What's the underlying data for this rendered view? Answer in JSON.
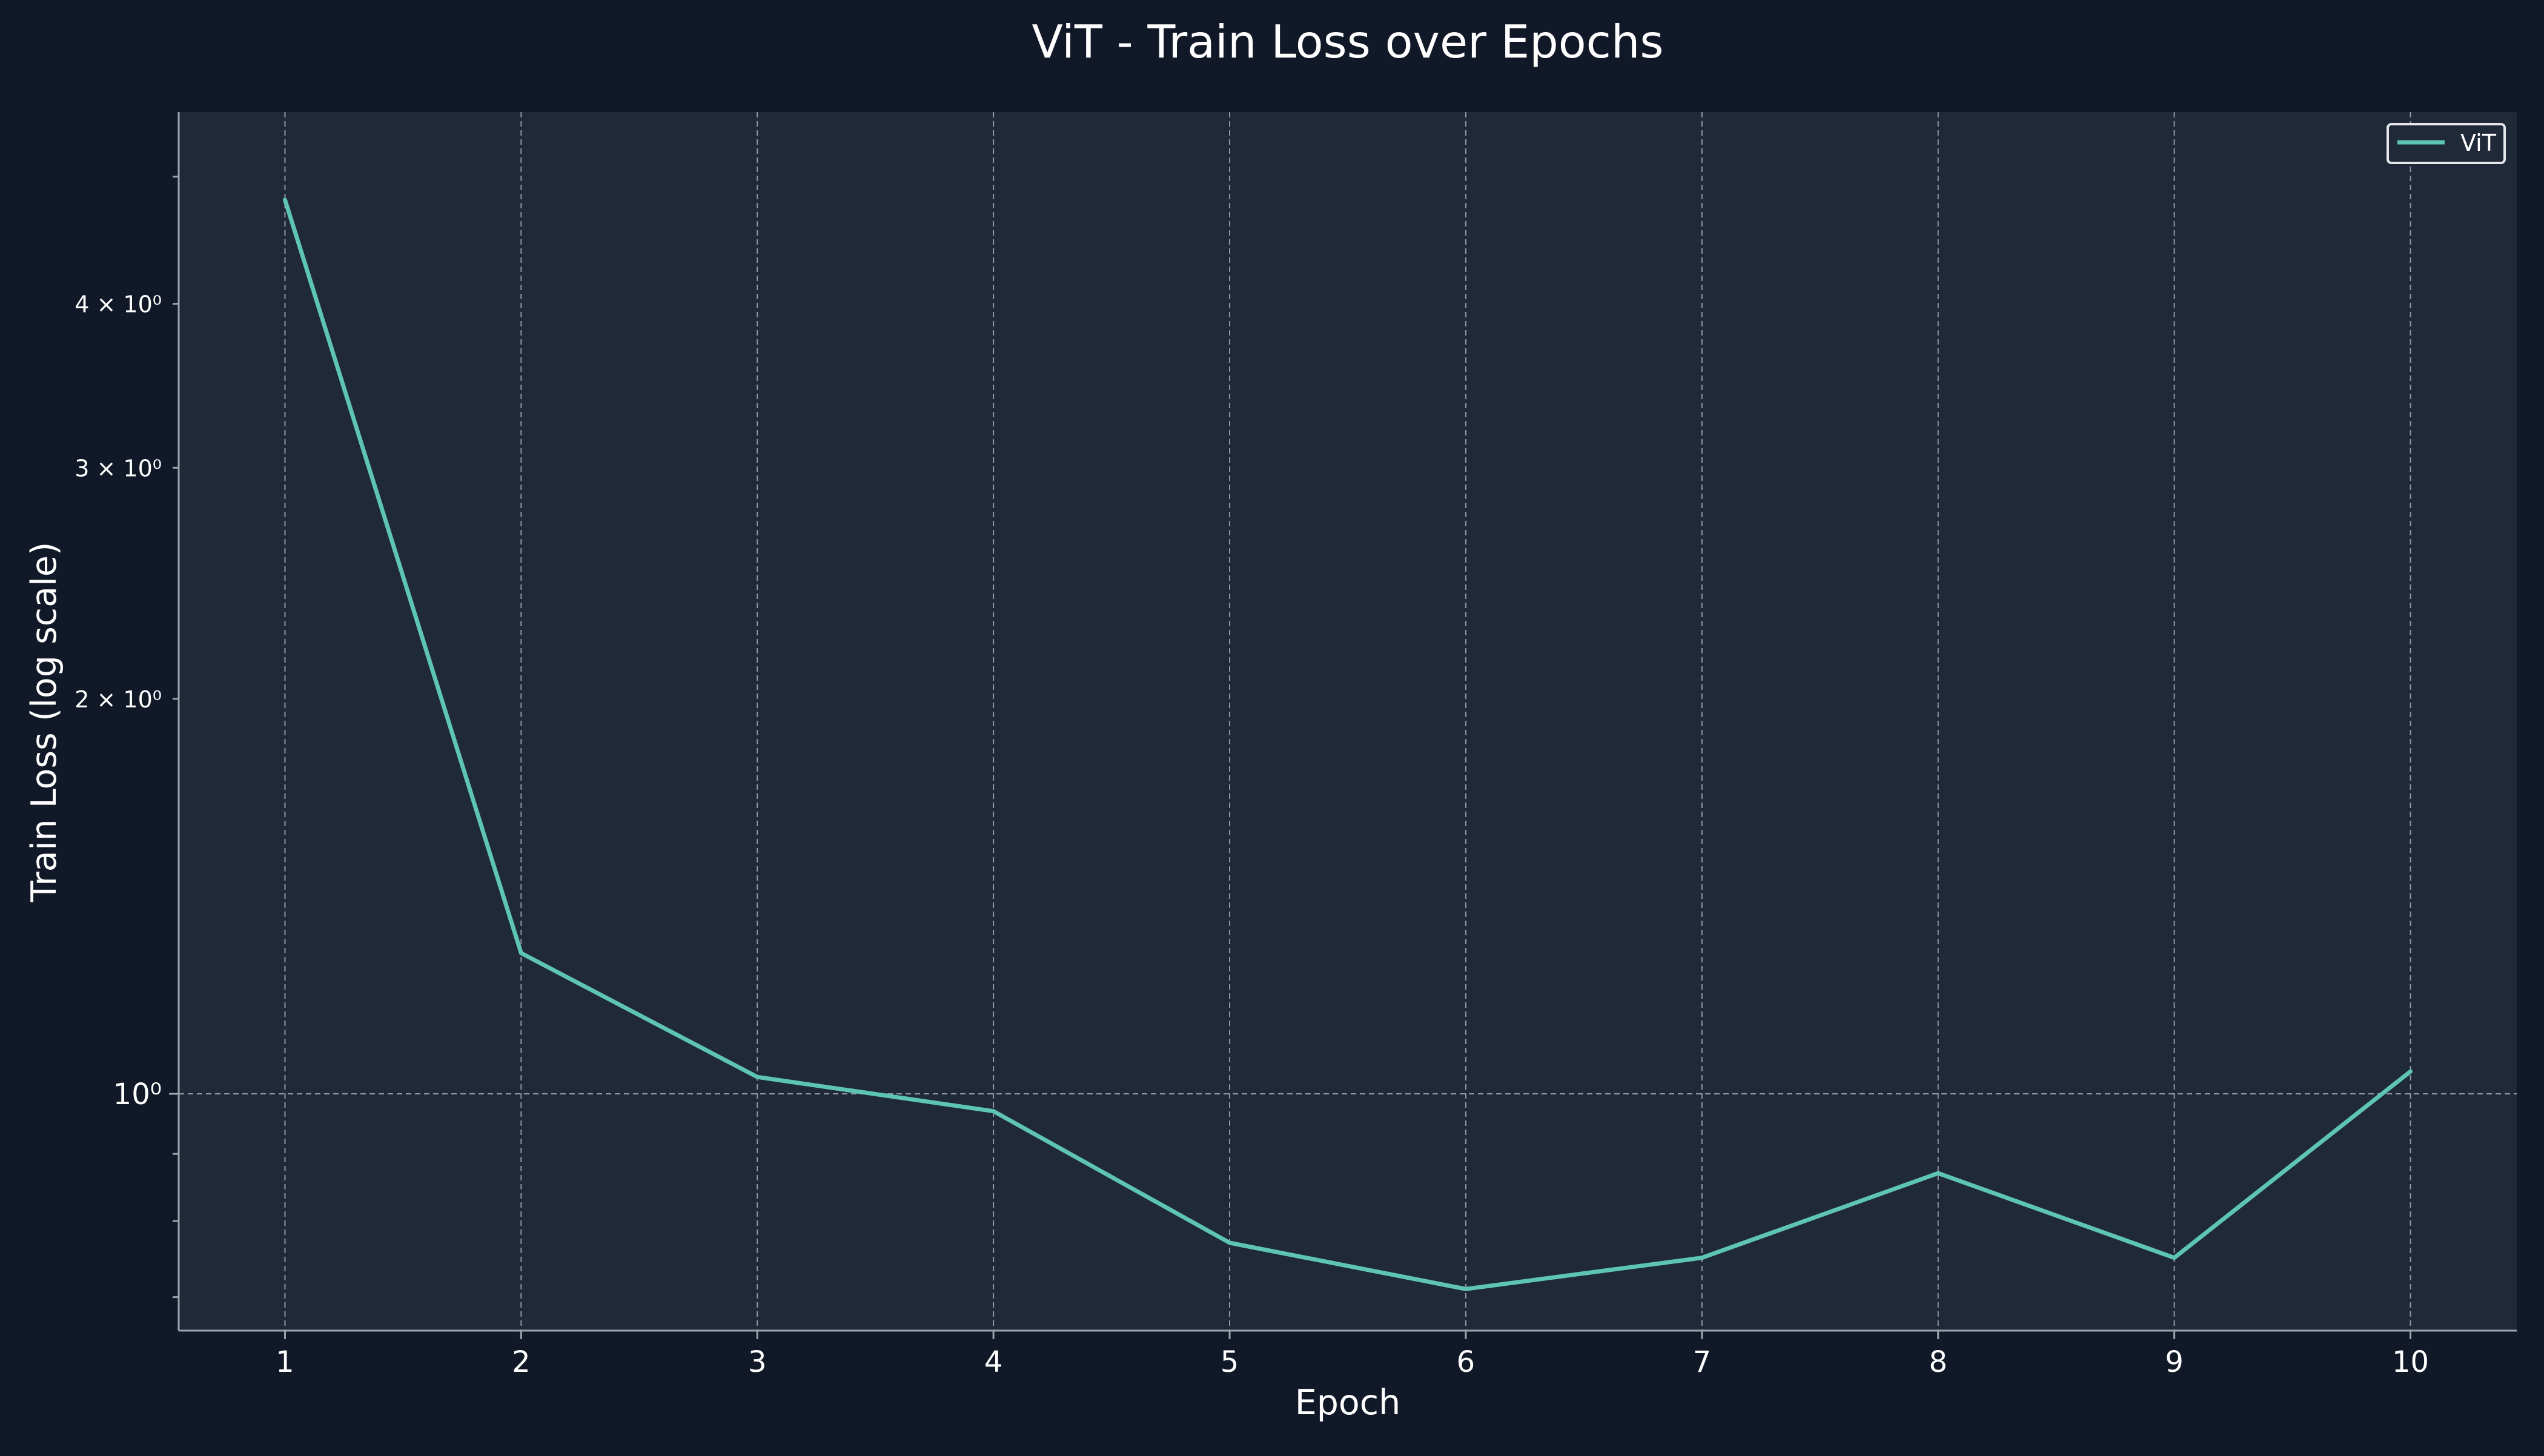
{
  "colors": {
    "background": "#111827",
    "plot_background": "#1f2937",
    "line": "#5ec4b4",
    "text": "#ffffff",
    "grid": "#b8bec8",
    "axis": "#9ca3af"
  },
  "chart_data": {
    "type": "line",
    "title": "ViT - Train Loss over Epochs",
    "xlabel": "Epoch",
    "ylabel": "Train Loss (log scale)",
    "yscale": "log",
    "x": [
      1,
      2,
      3,
      4,
      5,
      6,
      7,
      8,
      9,
      10
    ],
    "series": [
      {
        "name": "ViT",
        "values": [
          4.8,
          1.28,
          1.03,
          0.97,
          0.77,
          0.71,
          0.75,
          0.87,
          0.75,
          1.04
        ]
      }
    ],
    "xlim": [
      0.55,
      10.45
    ],
    "ylim": [
      0.66,
      5.6
    ],
    "xticks": [
      1,
      2,
      3,
      4,
      5,
      6,
      7,
      8,
      9,
      10
    ],
    "yticks_major": [
      {
        "value": 1,
        "label": "10⁰"
      }
    ],
    "yticks_minor_labeled": [
      {
        "value": 2,
        "label": "2 × 10⁰"
      },
      {
        "value": 3,
        "label": "3 × 10⁰"
      },
      {
        "value": 4,
        "label": "4 × 10⁰"
      }
    ],
    "yticks_minor_unlabeled": [
      0.7,
      0.8,
      0.9,
      5
    ],
    "grid": true,
    "legend_position": "top-right"
  }
}
